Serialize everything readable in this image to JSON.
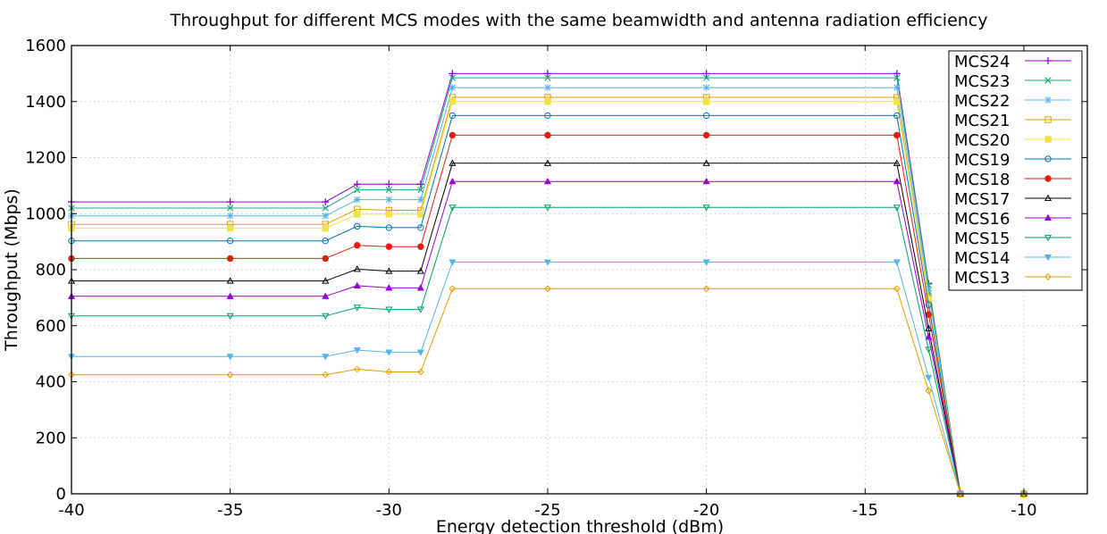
{
  "chart_data": {
    "type": "line",
    "title": "Throughput for different MCS modes with the same beamwidth and antenna radiation efficiency",
    "xlabel": "Energy detection threshold (dBm)",
    "ylabel": "Throughput (Mbps)",
    "xlim": [
      -40,
      -8
    ],
    "ylim": [
      0,
      1600
    ],
    "xticks": [
      -40,
      -35,
      -30,
      -25,
      -20,
      -15,
      -10
    ],
    "yticks": [
      0,
      200,
      400,
      600,
      800,
      1000,
      1200,
      1400,
      1600
    ],
    "grid": true,
    "legend_position": "top-right",
    "x": [
      -40,
      -35,
      -32,
      -31,
      -30,
      -29,
      -28,
      -25,
      -20,
      -14,
      -13,
      -12,
      -10
    ],
    "series": [
      {
        "name": "MCS24",
        "color": "#9400d3",
        "marker": "plus",
        "values": [
          1042,
          1042,
          1042,
          1105,
          1105,
          1105,
          1500,
          1500,
          1500,
          1500,
          750,
          0,
          0
        ]
      },
      {
        "name": "MCS23",
        "color": "#1aa87a",
        "marker": "x",
        "values": [
          1020,
          1020,
          1020,
          1085,
          1085,
          1085,
          1485,
          1485,
          1485,
          1485,
          745,
          0,
          0
        ]
      },
      {
        "name": "MCS22",
        "color": "#56b4e9",
        "marker": "star",
        "values": [
          992,
          992,
          992,
          1050,
          1050,
          1050,
          1450,
          1450,
          1450,
          1450,
          725,
          0,
          0
        ]
      },
      {
        "name": "MCS21",
        "color": "#e69f00",
        "marker": "square-open",
        "values": [
          962,
          962,
          962,
          1016,
          1012,
          1012,
          1415,
          1415,
          1415,
          1415,
          700,
          0,
          0
        ]
      },
      {
        "name": "MCS20",
        "color": "#f0e442",
        "marker": "square-filled",
        "values": [
          948,
          948,
          948,
          998,
          998,
          998,
          1400,
          1400,
          1400,
          1400,
          695,
          0,
          0
        ]
      },
      {
        "name": "MCS19",
        "color": "#0072b2",
        "marker": "circle-open",
        "values": [
          903,
          903,
          903,
          955,
          950,
          950,
          1350,
          1350,
          1350,
          1350,
          675,
          0,
          0
        ]
      },
      {
        "name": "MCS18",
        "color": "#e51e10",
        "marker": "circle-filled",
        "values": [
          840,
          840,
          840,
          887,
          882,
          882,
          1280,
          1280,
          1280,
          1280,
          640,
          0,
          0
        ]
      },
      {
        "name": "MCS17",
        "color": "#000000",
        "marker": "triangle-open",
        "values": [
          760,
          760,
          760,
          802,
          795,
          795,
          1180,
          1180,
          1180,
          1180,
          590,
          0,
          0
        ]
      },
      {
        "name": "MCS16",
        "color": "#9400d3",
        "marker": "triangle-filled",
        "values": [
          705,
          705,
          705,
          743,
          735,
          735,
          1115,
          1115,
          1115,
          1115,
          560,
          0,
          0
        ]
      },
      {
        "name": "MCS15",
        "color": "#009e73",
        "marker": "triangle-down-open",
        "values": [
          635,
          635,
          635,
          665,
          658,
          658,
          1022,
          1022,
          1022,
          1022,
          515,
          0,
          0
        ]
      },
      {
        "name": "MCS14",
        "color": "#56b4e9",
        "marker": "triangle-down-filled",
        "values": [
          490,
          490,
          490,
          513,
          505,
          505,
          827,
          827,
          827,
          827,
          415,
          0,
          0
        ]
      },
      {
        "name": "MCS13",
        "color": "#e69f00",
        "marker": "diamond-open",
        "values": [
          425,
          425,
          425,
          445,
          435,
          435,
          732,
          732,
          732,
          732,
          368,
          0,
          0
        ]
      }
    ]
  }
}
